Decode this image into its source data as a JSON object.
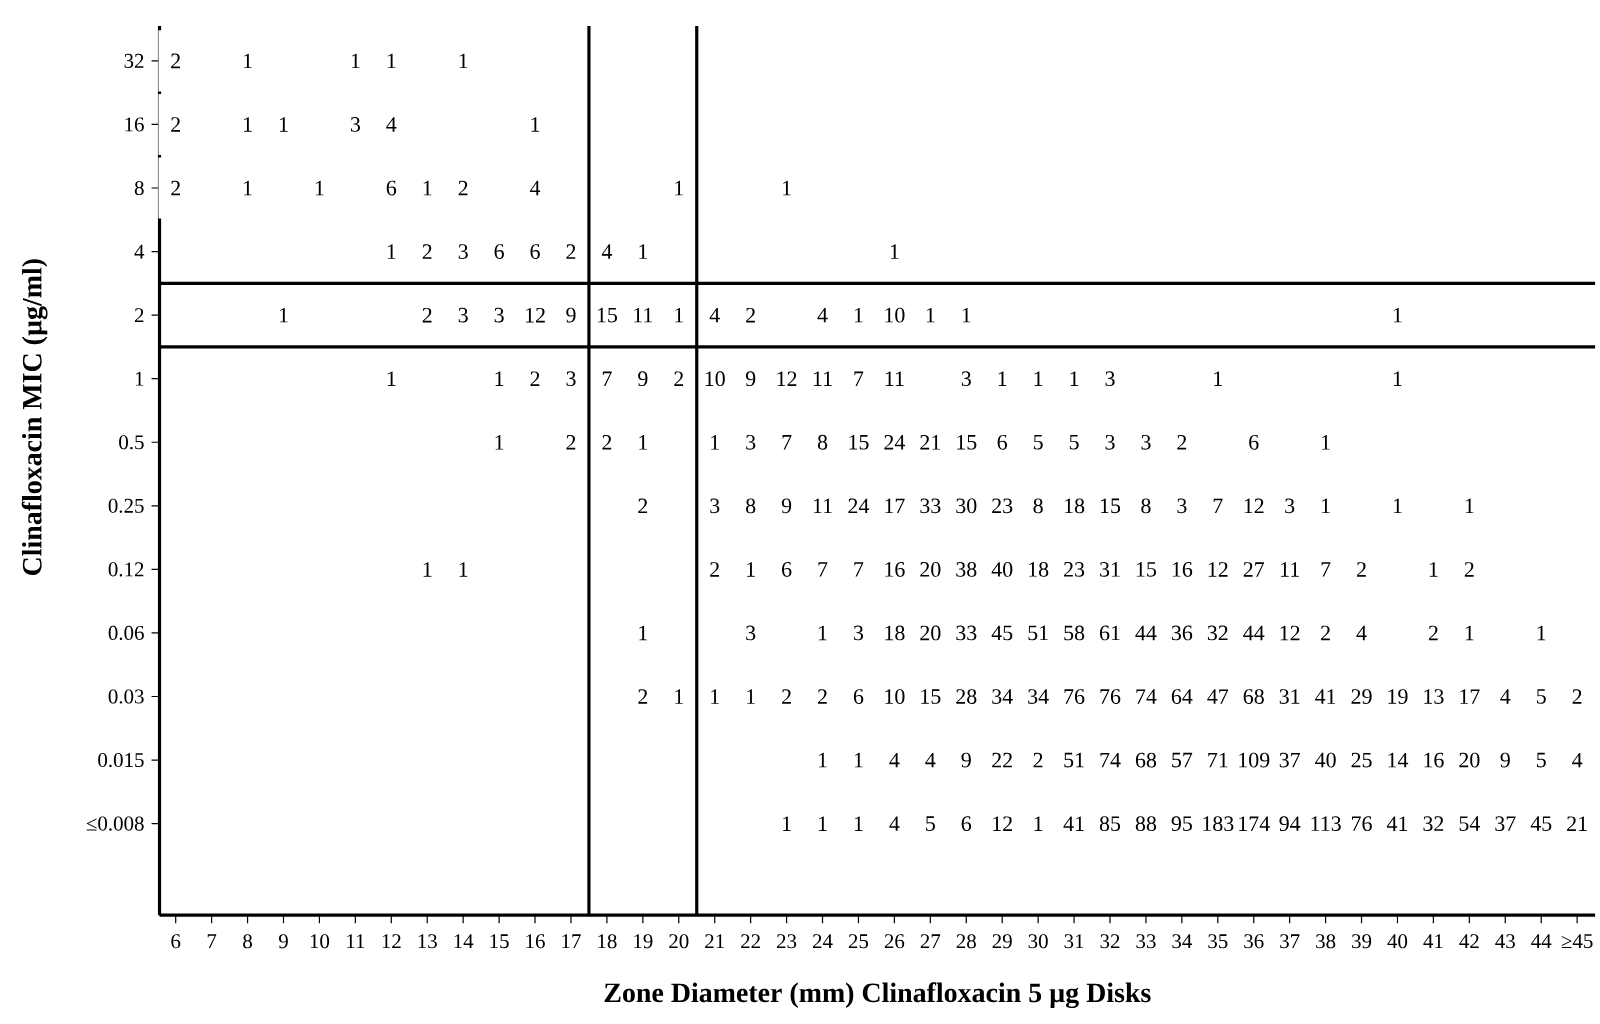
{
  "chart_data": {
    "type": "heatmap",
    "xlabel": "Zone Diameter  (mm)  Clinafloxacin 5 µg Disks",
    "ylabel": "Clinafloxacin MIC  (µg/ml)",
    "categories": [
      "6",
      "7",
      "8",
      "9",
      "10",
      "11",
      "12",
      "13",
      "14",
      "15",
      "16",
      "17",
      "18",
      "19",
      "20",
      "21",
      "22",
      "23",
      "24",
      "25",
      "26",
      "27",
      "28",
      "29",
      "30",
      "31",
      "32",
      "33",
      "34",
      "35",
      "36",
      "37",
      "38",
      "39",
      "40",
      "41",
      "42",
      "43",
      "44",
      "≥45"
    ],
    "y_categories": [
      "32",
      "16",
      "8",
      "4",
      "2",
      "1",
      "0.5",
      "0.25",
      "0.12",
      "0.06",
      "0.03",
      "0.015",
      "≤0.008"
    ],
    "cells": [
      [
        2,
        null,
        1,
        null,
        null,
        1,
        1,
        null,
        1,
        null,
        null,
        null,
        null,
        null,
        null,
        null,
        null,
        null,
        null,
        null,
        null,
        null,
        null,
        null,
        null,
        null,
        null,
        null,
        null,
        null,
        null,
        null,
        null,
        null,
        null,
        null,
        null,
        null,
        null,
        null
      ],
      [
        2,
        null,
        1,
        1,
        null,
        3,
        4,
        null,
        null,
        null,
        1,
        null,
        null,
        null,
        null,
        null,
        null,
        null,
        null,
        null,
        null,
        null,
        null,
        null,
        null,
        null,
        null,
        null,
        null,
        null,
        null,
        null,
        null,
        null,
        null,
        null,
        null,
        null,
        null,
        null
      ],
      [
        2,
        null,
        1,
        null,
        1,
        null,
        6,
        1,
        2,
        null,
        4,
        null,
        null,
        null,
        1,
        null,
        null,
        1,
        null,
        null,
        null,
        null,
        null,
        null,
        null,
        null,
        null,
        null,
        null,
        null,
        null,
        null,
        null,
        null,
        null,
        null,
        null,
        null,
        null,
        null
      ],
      [
        null,
        null,
        null,
        null,
        null,
        null,
        1,
        2,
        3,
        6,
        6,
        2,
        4,
        1,
        null,
        null,
        null,
        null,
        null,
        null,
        1,
        null,
        null,
        null,
        null,
        null,
        null,
        null,
        null,
        null,
        null,
        null,
        null,
        null,
        null,
        null,
        null,
        null,
        null,
        null
      ],
      [
        null,
        null,
        null,
        1,
        null,
        null,
        null,
        2,
        3,
        3,
        12,
        9,
        15,
        11,
        1,
        4,
        2,
        null,
        4,
        1,
        10,
        1,
        1,
        null,
        null,
        null,
        null,
        null,
        null,
        null,
        null,
        null,
        null,
        null,
        1,
        null,
        null,
        null,
        null,
        null
      ],
      [
        null,
        null,
        null,
        null,
        null,
        null,
        1,
        null,
        null,
        1,
        2,
        3,
        7,
        9,
        2,
        10,
        9,
        12,
        11,
        7,
        11,
        null,
        3,
        1,
        1,
        1,
        3,
        null,
        null,
        1,
        null,
        null,
        null,
        null,
        1,
        null,
        null,
        null,
        null,
        null
      ],
      [
        null,
        null,
        null,
        null,
        null,
        null,
        null,
        null,
        null,
        1,
        null,
        2,
        2,
        1,
        null,
        1,
        3,
        7,
        8,
        15,
        24,
        21,
        15,
        6,
        5,
        5,
        3,
        3,
        2,
        null,
        6,
        null,
        1,
        null,
        null,
        null,
        null,
        null,
        null,
        null
      ],
      [
        null,
        null,
        null,
        null,
        null,
        null,
        null,
        null,
        null,
        null,
        null,
        null,
        null,
        2,
        null,
        3,
        8,
        9,
        11,
        24,
        17,
        33,
        30,
        23,
        8,
        18,
        15,
        8,
        3,
        7,
        12,
        3,
        1,
        null,
        1,
        null,
        1,
        null,
        null,
        null
      ],
      [
        null,
        null,
        null,
        null,
        null,
        null,
        null,
        1,
        1,
        null,
        null,
        null,
        null,
        null,
        null,
        2,
        1,
        6,
        7,
        7,
        16,
        20,
        38,
        40,
        18,
        23,
        31,
        15,
        16,
        12,
        27,
        11,
        7,
        2,
        null,
        1,
        2,
        null,
        null,
        null
      ],
      [
        null,
        null,
        null,
        null,
        null,
        null,
        null,
        null,
        null,
        null,
        null,
        null,
        null,
        1,
        null,
        null,
        3,
        null,
        1,
        3,
        18,
        20,
        33,
        45,
        51,
        58,
        61,
        44,
        36,
        32,
        44,
        12,
        2,
        4,
        null,
        2,
        1,
        null,
        1,
        null
      ],
      [
        null,
        null,
        null,
        null,
        null,
        null,
        null,
        null,
        null,
        null,
        null,
        null,
        null,
        2,
        1,
        1,
        1,
        2,
        2,
        6,
        10,
        15,
        28,
        34,
        34,
        76,
        76,
        74,
        64,
        47,
        68,
        31,
        41,
        29,
        19,
        13,
        17,
        4,
        5,
        2
      ],
      [
        null,
        null,
        null,
        null,
        null,
        null,
        null,
        null,
        null,
        null,
        null,
        null,
        null,
        null,
        null,
        null,
        null,
        null,
        1,
        1,
        4,
        4,
        9,
        22,
        2,
        51,
        74,
        68,
        57,
        71,
        109,
        37,
        40,
        25,
        14,
        16,
        20,
        9,
        5,
        4
      ],
      [
        null,
        null,
        null,
        null,
        null,
        null,
        null,
        null,
        null,
        null,
        null,
        null,
        null,
        null,
        null,
        null,
        null,
        1,
        1,
        1,
        4,
        5,
        6,
        12,
        1,
        41,
        85,
        88,
        95,
        183,
        174,
        94,
        113,
        76,
        41,
        32,
        54,
        37,
        45,
        21
      ]
    ],
    "data_labels": true
  }
}
